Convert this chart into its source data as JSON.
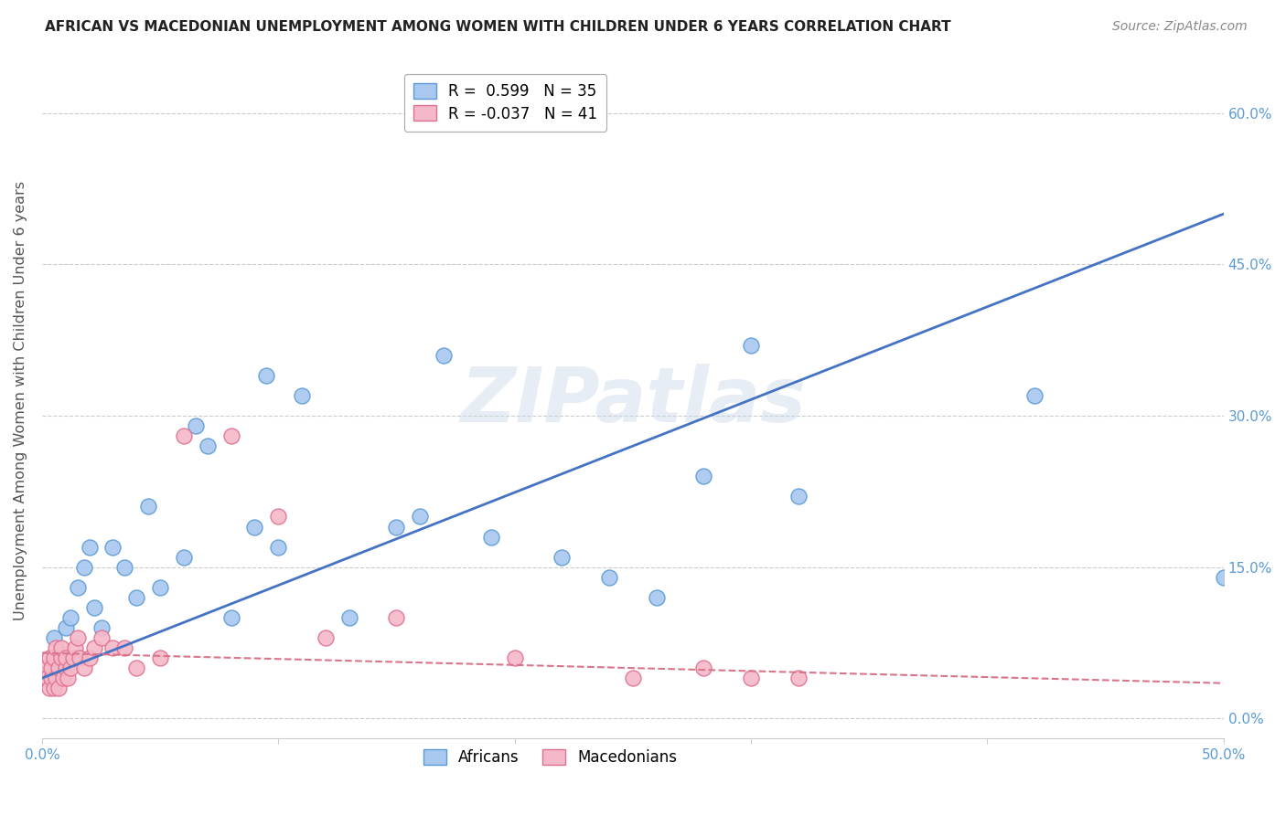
{
  "title": "AFRICAN VS MACEDONIAN UNEMPLOYMENT AMONG WOMEN WITH CHILDREN UNDER 6 YEARS CORRELATION CHART",
  "source": "Source: ZipAtlas.com",
  "ylabel": "Unemployment Among Women with Children Under 6 years",
  "xlim": [
    0.0,
    0.5
  ],
  "ylim": [
    -0.02,
    0.65
  ],
  "x_ticks": [
    0.0,
    0.1,
    0.2,
    0.3,
    0.4,
    0.5
  ],
  "x_tick_labels": [
    "0.0%",
    "",
    "",
    "",
    "",
    "50.0%"
  ],
  "y_ticks": [
    0.0,
    0.15,
    0.3,
    0.45,
    0.6
  ],
  "y_tick_labels_right": [
    "0.0%",
    "15.0%",
    "30.0%",
    "45.0%",
    "60.0%"
  ],
  "african_color": "#a8c8f0",
  "macedonian_color": "#f5b8c8",
  "african_edge_color": "#5b9bd5",
  "macedonian_edge_color": "#e07090",
  "trend_african_color": "#4472c4",
  "trend_macedonian_color": "#d9748a",
  "legend_african_label": "Africans",
  "legend_macedonian_label": "Macedonians",
  "r_african": "0.599",
  "n_african": "35",
  "r_macedonian": "-0.037",
  "n_macedonian": "41",
  "watermark": "ZIPatlas",
  "background_color": "#ffffff",
  "grid_color": "#cccccc",
  "tick_color": "#5b9bd5",
  "africans_x": [
    0.005,
    0.008,
    0.01,
    0.012,
    0.015,
    0.018,
    0.02,
    0.022,
    0.025,
    0.03,
    0.035,
    0.04,
    0.045,
    0.05,
    0.06,
    0.065,
    0.07,
    0.08,
    0.09,
    0.095,
    0.1,
    0.11,
    0.13,
    0.15,
    0.16,
    0.17,
    0.19,
    0.22,
    0.24,
    0.26,
    0.28,
    0.3,
    0.32,
    0.42,
    0.5
  ],
  "africans_y": [
    0.08,
    0.05,
    0.09,
    0.1,
    0.13,
    0.15,
    0.17,
    0.11,
    0.09,
    0.17,
    0.15,
    0.12,
    0.21,
    0.13,
    0.16,
    0.29,
    0.27,
    0.1,
    0.19,
    0.34,
    0.17,
    0.32,
    0.1,
    0.19,
    0.2,
    0.36,
    0.18,
    0.16,
    0.14,
    0.12,
    0.24,
    0.37,
    0.22,
    0.32,
    0.14
  ],
  "macedonians_x": [
    0.001,
    0.002,
    0.003,
    0.003,
    0.004,
    0.004,
    0.005,
    0.005,
    0.006,
    0.006,
    0.007,
    0.007,
    0.008,
    0.008,
    0.009,
    0.01,
    0.01,
    0.011,
    0.012,
    0.013,
    0.014,
    0.015,
    0.016,
    0.018,
    0.02,
    0.022,
    0.025,
    0.03,
    0.035,
    0.04,
    0.05,
    0.06,
    0.08,
    0.1,
    0.12,
    0.15,
    0.2,
    0.25,
    0.28,
    0.3,
    0.32
  ],
  "macedonians_y": [
    0.05,
    0.04,
    0.03,
    0.06,
    0.04,
    0.05,
    0.03,
    0.06,
    0.04,
    0.07,
    0.05,
    0.03,
    0.06,
    0.07,
    0.04,
    0.05,
    0.06,
    0.04,
    0.05,
    0.06,
    0.07,
    0.08,
    0.06,
    0.05,
    0.06,
    0.07,
    0.08,
    0.07,
    0.07,
    0.05,
    0.06,
    0.28,
    0.28,
    0.2,
    0.08,
    0.1,
    0.06,
    0.04,
    0.05,
    0.04,
    0.04
  ],
  "trend_african_x0": 0.0,
  "trend_african_y0": 0.04,
  "trend_african_x1": 0.5,
  "trend_african_y1": 0.5,
  "trend_macedonian_x0": 0.0,
  "trend_macedonian_y0": 0.065,
  "trend_macedonian_x1": 0.5,
  "trend_macedonian_y1": 0.035
}
